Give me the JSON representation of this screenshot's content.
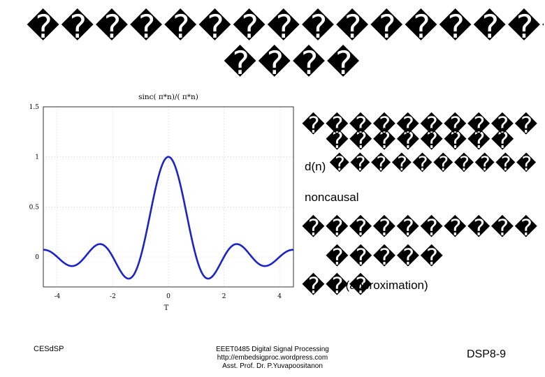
{
  "slide": {
    "title_line1": "������������������",
    "title_line2": "����"
  },
  "chart_data": {
    "type": "line",
    "title": "sinc(   π*n)/(   π*n)",
    "xlabel": "T",
    "ylabel": "",
    "xlim": [
      -4.5,
      4.5
    ],
    "ylim": [
      -0.3,
      1.5
    ],
    "grid": true,
    "x_ticks": [
      "-4",
      "-2",
      "0",
      "2",
      "4"
    ],
    "y_ticks": [
      "0",
      "0.5",
      "1",
      "1.5"
    ],
    "series": [
      {
        "color": "#1a23c8",
        "function": "sinc",
        "x": [
          -4.5,
          -4.0,
          -3.5,
          -3.0,
          -2.5,
          -2.0,
          -1.5,
          -1.0,
          -0.5,
          0,
          0.5,
          1.0,
          1.5,
          2.0,
          2.5,
          3.0,
          3.5,
          4.0,
          4.5
        ],
        "y": [
          0.071,
          0,
          -0.091,
          0,
          0.127,
          0,
          -0.212,
          0,
          0.637,
          1,
          0.637,
          0,
          -0.212,
          0,
          0.127,
          0,
          -0.091,
          0,
          0.071
        ]
      }
    ]
  },
  "bullets": {
    "b1_line1": "����������",
    "b1_line2": "��������",
    "b2_prefix": "d(n)",
    "b2_suffix": "����������",
    "b3": "noncausal",
    "b4_line1": "����������",
    "b4_line2": "�����",
    "b4_line3_glyphs": "���",
    "b4_line3_text": "(approximation)"
  },
  "footer": {
    "left": "CESdSP",
    "center_line1": "EEET0485 Digital Signal Processing",
    "center_line2": "http://embedsigproc.wordpress.com",
    "center_line3": "Asst. Prof. Dr. P.Yuvapoositanon",
    "right": "DSP8-9"
  }
}
